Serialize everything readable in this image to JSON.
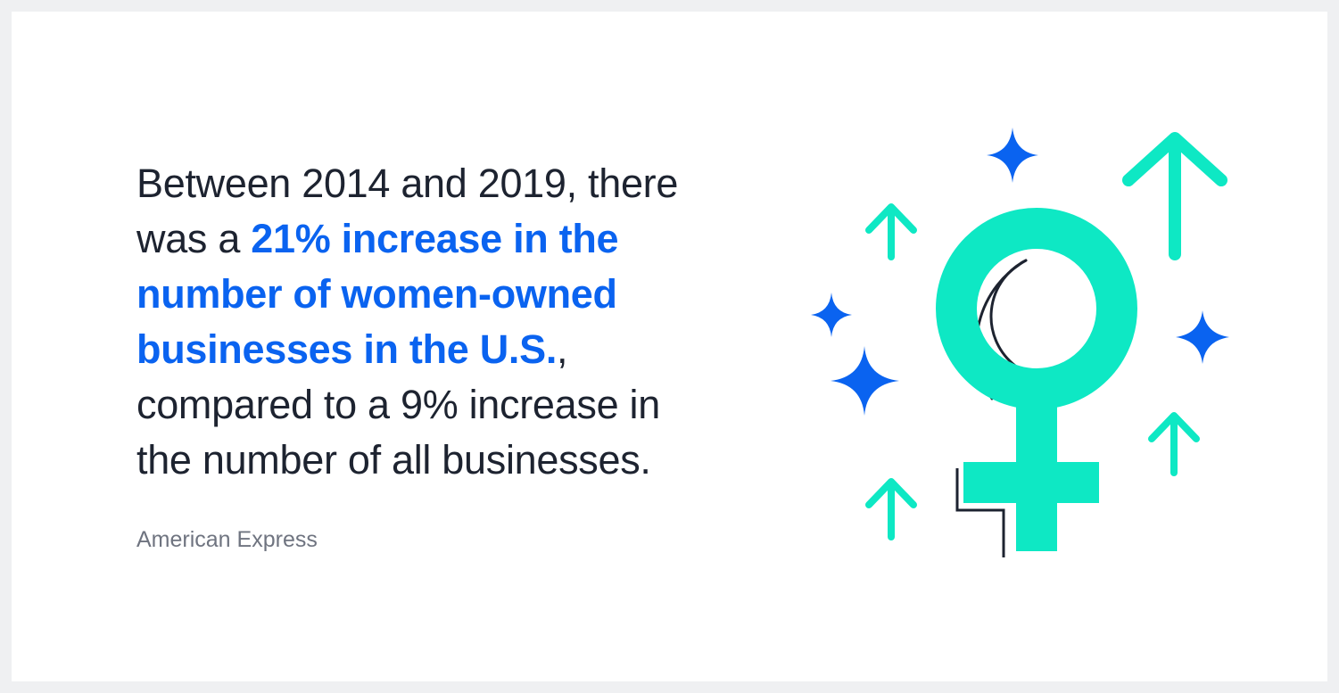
{
  "statement": {
    "line1": "Between 2014 and 2019, there",
    "line2_prefix": "was a ",
    "line2_highlight": "21% increase in the",
    "line3_highlight": "number of women-owned",
    "line4_highlight": "businesses in the U.S.",
    "line4_suffix": ",",
    "line5": "compared to a 9% increase in",
    "line6": "the number of all businesses."
  },
  "source": "American Express",
  "colors": {
    "highlight": "#0a63f0",
    "text": "#1d2330",
    "source": "#6f7480",
    "teal": "#0ee8c4",
    "sparkle": "#0a63f0",
    "outline": "#1d2330",
    "background": "#eff0f2"
  },
  "illustration": {
    "icons": [
      "female-symbol-icon",
      "up-arrow-icon",
      "sparkle-icon"
    ]
  }
}
